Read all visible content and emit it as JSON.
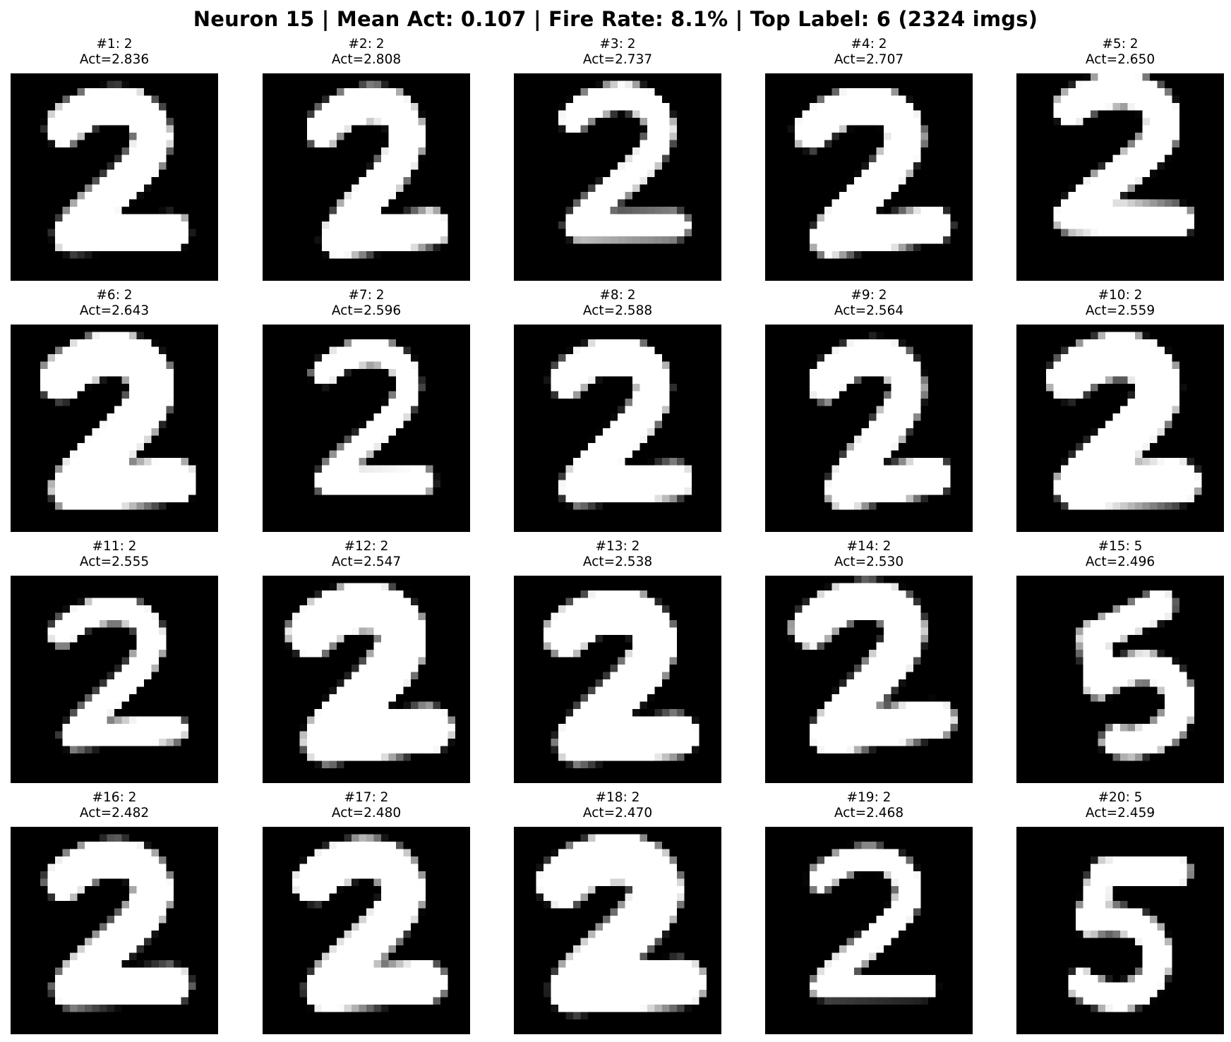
{
  "figure": {
    "title": "Neuron 15 | Mean Act: 0.107 | Fire Rate: 8.1% | Top Label: 6 (2324 imgs)"
  },
  "panels": [
    {
      "rank": "#1: 2",
      "act": "Act=2.836",
      "label": "2",
      "activation": 2.836,
      "glyph": "2"
    },
    {
      "rank": "#2: 2",
      "act": "Act=2.808",
      "label": "2",
      "activation": 2.808,
      "glyph": "2"
    },
    {
      "rank": "#3: 2",
      "act": "Act=2.737",
      "label": "2",
      "activation": 2.737,
      "glyph": "2"
    },
    {
      "rank": "#4: 2",
      "act": "Act=2.707",
      "label": "2",
      "activation": 2.707,
      "glyph": "2"
    },
    {
      "rank": "#5: 2",
      "act": "Act=2.650",
      "label": "2",
      "activation": 2.65,
      "glyph": "2"
    },
    {
      "rank": "#6: 2",
      "act": "Act=2.643",
      "label": "2",
      "activation": 2.643,
      "glyph": "2"
    },
    {
      "rank": "#7: 2",
      "act": "Act=2.596",
      "label": "2",
      "activation": 2.596,
      "glyph": "2"
    },
    {
      "rank": "#8: 2",
      "act": "Act=2.588",
      "label": "2",
      "activation": 2.588,
      "glyph": "2"
    },
    {
      "rank": "#9: 2",
      "act": "Act=2.564",
      "label": "2",
      "activation": 2.564,
      "glyph": "2"
    },
    {
      "rank": "#10: 2",
      "act": "Act=2.559",
      "label": "2",
      "activation": 2.559,
      "glyph": "2"
    },
    {
      "rank": "#11: 2",
      "act": "Act=2.555",
      "label": "2",
      "activation": 2.555,
      "glyph": "2"
    },
    {
      "rank": "#12: 2",
      "act": "Act=2.547",
      "label": "2",
      "activation": 2.547,
      "glyph": "2"
    },
    {
      "rank": "#13: 2",
      "act": "Act=2.538",
      "label": "2",
      "activation": 2.538,
      "glyph": "2"
    },
    {
      "rank": "#14: 2",
      "act": "Act=2.530",
      "label": "2",
      "activation": 2.53,
      "glyph": "2"
    },
    {
      "rank": "#15: 5",
      "act": "Act=2.496",
      "label": "5",
      "activation": 2.496,
      "glyph": "5"
    },
    {
      "rank": "#16: 2",
      "act": "Act=2.482",
      "label": "2",
      "activation": 2.482,
      "glyph": "2"
    },
    {
      "rank": "#17: 2",
      "act": "Act=2.480",
      "label": "2",
      "activation": 2.48,
      "glyph": "2"
    },
    {
      "rank": "#18: 2",
      "act": "Act=2.470",
      "label": "2",
      "activation": 2.47,
      "glyph": "2"
    },
    {
      "rank": "#19: 2",
      "act": "Act=2.468",
      "label": "2",
      "activation": 2.468,
      "glyph": "2"
    },
    {
      "rank": "#20: 5",
      "act": "Act=2.459",
      "label": "5",
      "activation": 2.459,
      "glyph": "5"
    }
  ],
  "colors": {
    "image_background": "#000000",
    "digit_stroke": "#ffffff",
    "page_background": "#ffffff"
  }
}
